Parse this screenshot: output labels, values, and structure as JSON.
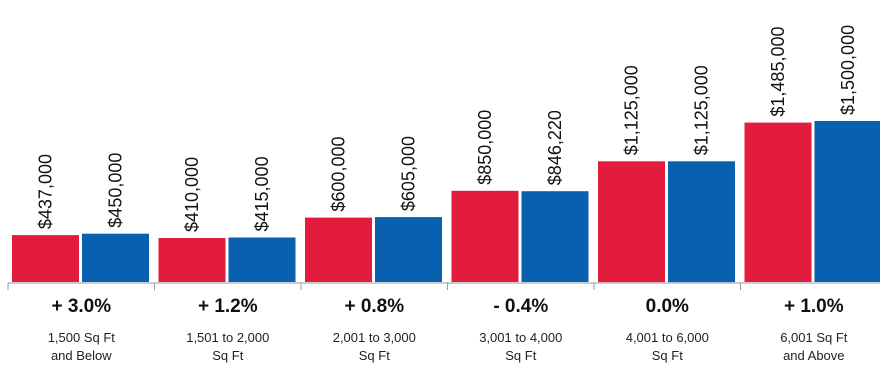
{
  "chart_data": {
    "type": "bar",
    "categories": [
      [
        "1,500 Sq Ft",
        "and Below"
      ],
      [
        "1,501 to 2,000",
        "Sq Ft"
      ],
      [
        "2,001 to 3,000",
        "Sq Ft"
      ],
      [
        "3,001 to 4,000",
        "Sq Ft"
      ],
      [
        "4,001 to 6,000",
        "Sq Ft"
      ],
      [
        "6,001 Sq Ft",
        "and Above"
      ]
    ],
    "series": [
      {
        "color": "#e31c3d",
        "values": [
          437000,
          410000,
          600000,
          850000,
          1125000,
          1485000
        ],
        "labels": [
          "$437,000",
          "$410,000",
          "$600,000",
          "$850,000",
          "$1,125,000",
          "$1,485,000"
        ]
      },
      {
        "color": "#0860ae",
        "values": [
          450000,
          415000,
          605000,
          846220,
          1125000,
          1500000
        ],
        "labels": [
          "$450,000",
          "$415,000",
          "$605,000",
          "$846,220",
          "$1,125,000",
          "$1,500,000"
        ]
      }
    ],
    "changes": [
      "+ 3.0%",
      "+ 1.2%",
      "+ 0.8%",
      "- 0.4%",
      "0.0%",
      "+ 1.0%"
    ],
    "ylim": [
      0,
      1500000
    ],
    "grid": false,
    "legend": "none",
    "axis_color": "#999999"
  }
}
